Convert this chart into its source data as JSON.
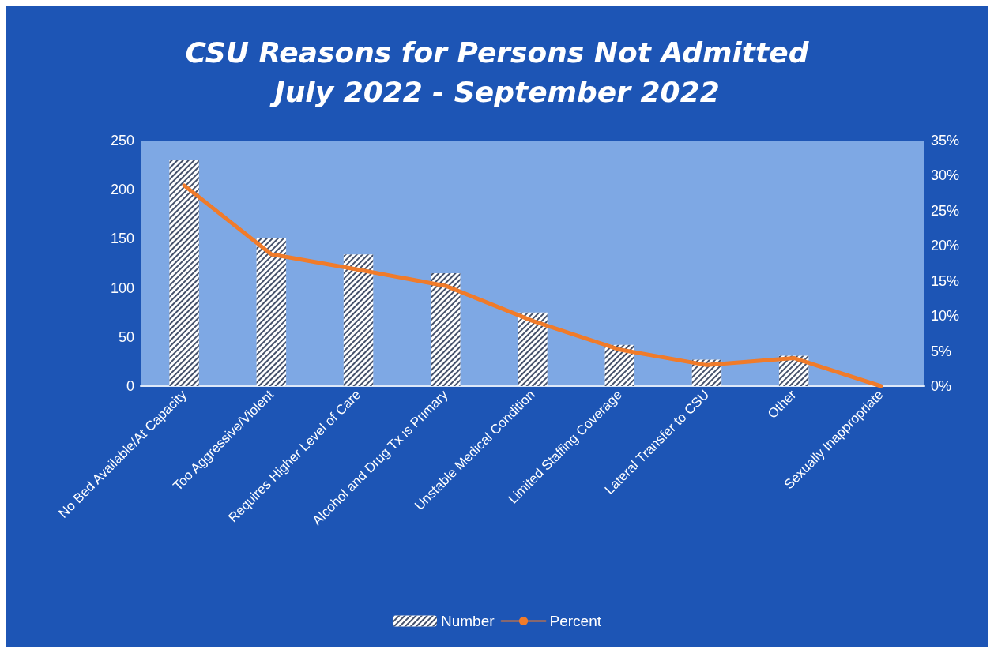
{
  "chart_data": {
    "type": "bar",
    "title": "CSU Reasons for Persons Not Admitted\nJuly 2022 - September 2022",
    "categories": [
      "No Bed Available/At Capacity",
      "Too Aggressive/Violent",
      "Requires Higher Level of Care",
      "Alcohol and Drug Tx is Primary",
      "Unstable Medical Condition",
      "Limited Staffing Coverage",
      "Lateral Transfer to CSU",
      "Other",
      "Sexually Inappropriate"
    ],
    "series": [
      {
        "name": "Number",
        "color": "#ffffff",
        "values": [
          230,
          151,
          134,
          115,
          75,
          42,
          27,
          31,
          0
        ]
      },
      {
        "name": "Percent",
        "type": "line",
        "axis": "y2",
        "color": "#f07b2a",
        "values": [
          28.6,
          18.8,
          16.6,
          14.3,
          9.3,
          5.2,
          3.0,
          4.0,
          0
        ]
      }
    ],
    "ylim": [
      0,
      250
    ],
    "yticks": [
      0,
      50,
      100,
      150,
      200,
      250
    ],
    "y2lim": [
      0,
      35
    ],
    "y2ticks": [
      {
        "value": 0,
        "label": "0%"
      },
      {
        "value": 5,
        "label": "5%"
      },
      {
        "value": 10,
        "label": "10%"
      },
      {
        "value": 15,
        "label": "15%"
      },
      {
        "value": 20,
        "label": "20%"
      },
      {
        "value": 25,
        "label": "25%"
      },
      {
        "value": 30,
        "label": "30%"
      },
      {
        "value": 35,
        "label": "35%"
      }
    ],
    "grid": false,
    "legend": "bottom",
    "marker": "none",
    "line_style": "solid"
  }
}
